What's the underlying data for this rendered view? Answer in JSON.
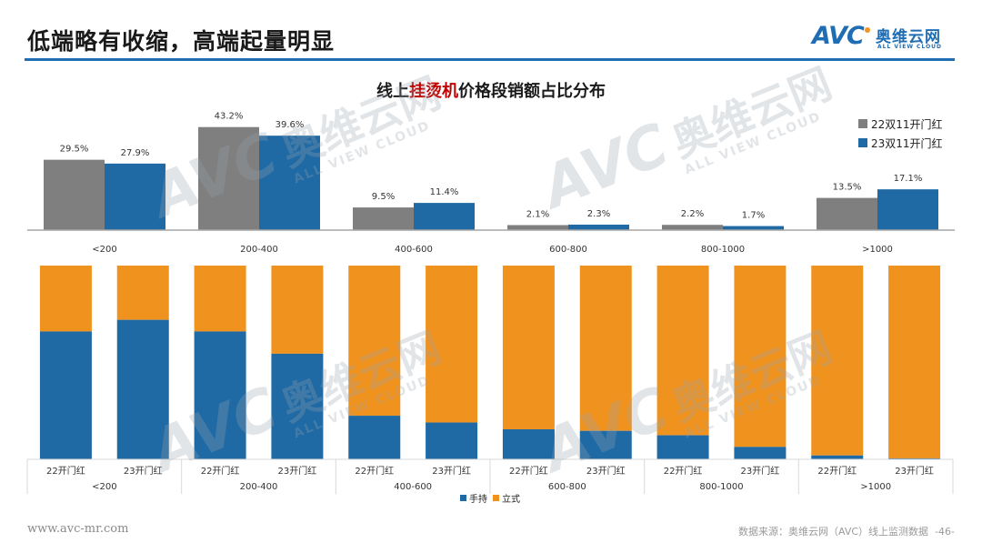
{
  "header": {
    "title": "低端略有收缩，高端起量明显",
    "logo": {
      "mark": "AVC",
      "cn": "奥维云网",
      "en": "ALL VIEW CLOUD"
    }
  },
  "chart_title": {
    "prefix": "线上",
    "highlight": "挂烫机",
    "suffix": "价格段销额占比分布"
  },
  "colors": {
    "accent": "#1f6db3",
    "grey": "#7f7f7f",
    "blue": "#1f6aa5",
    "orange": "#f0921e",
    "highlight": "#c00000"
  },
  "chart_data": [
    {
      "type": "bar",
      "title": "线上挂烫机价格段销额占比分布",
      "xlabel": "",
      "ylabel": "",
      "categories": [
        "<200",
        "200-400",
        "400-600",
        "600-800",
        "800-1000",
        ">1000"
      ],
      "series": [
        {
          "name": "22双11开门红",
          "color": "#7f7f7f",
          "values": [
            29.5,
            43.2,
            9.5,
            2.1,
            2.2,
            13.5
          ],
          "labels": [
            "29.5%",
            "43.2%",
            "9.5%",
            "2.1%",
            "2.2%",
            "13.5%"
          ]
        },
        {
          "name": "23双11开门红",
          "color": "#1f6aa5",
          "values": [
            27.9,
            39.6,
            11.4,
            2.3,
            1.7,
            17.1
          ],
          "labels": [
            "27.9%",
            "39.6%",
            "11.4%",
            "2.3%",
            "1.7%",
            "17.1%"
          ]
        }
      ],
      "ylim": [
        0,
        45
      ],
      "grid": false,
      "legend": "top-right"
    },
    {
      "type": "bar",
      "stacked": "percent",
      "groups": [
        "<200",
        "200-400",
        "400-600",
        "600-800",
        "800-1000",
        ">1000"
      ],
      "subcategories": [
        "22开门红",
        "23开门红"
      ],
      "series": [
        {
          "name": "手持",
          "color": "#1f6aa5",
          "values": [
            [
              66,
              72
            ],
            [
              66,
              54.5
            ],
            [
              22.5,
              19
            ],
            [
              15.5,
              14.7
            ],
            [
              12.4,
              6.4
            ],
            [
              2,
              0.5
            ]
          ]
        },
        {
          "name": "立式",
          "color": "#f0921e",
          "values": [
            [
              34,
              28
            ],
            [
              34,
              45.5
            ],
            [
              77.5,
              81
            ],
            [
              84.5,
              85.3
            ],
            [
              87.6,
              93.6
            ],
            [
              98,
              99.5
            ]
          ]
        }
      ],
      "ylim": [
        0,
        100
      ],
      "grid": false,
      "legend": "bottom"
    }
  ],
  "footer": {
    "url": "www.avc-mr.com",
    "source": "数据来源：奥维云网（AVC）线上监测数据",
    "page": "-46-"
  }
}
